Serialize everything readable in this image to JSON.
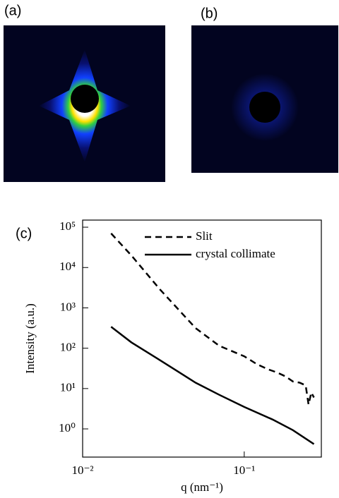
{
  "panels": {
    "a": "(a)",
    "b": "(b)"
  },
  "chart_data": {
    "type": "line",
    "panel_label": "(c)",
    "xlabel": "q (nm⁻¹)",
    "ylabel": "Intensity (a.u.)",
    "log_x": true,
    "log_y": true,
    "legend": "upper right",
    "xlim": [
      0.01,
      0.3
    ],
    "ylim": [
      0.2,
      150000
    ],
    "xticks": [
      {
        "value": 0.01,
        "label": "10⁻²"
      },
      {
        "value": 0.1,
        "label": "10⁻¹"
      }
    ],
    "yticks": [
      {
        "value": 1,
        "label": "10⁰"
      },
      {
        "value": 10,
        "label": "10¹"
      },
      {
        "value": 100,
        "label": "10²"
      },
      {
        "value": 1000,
        "label": "10³"
      },
      {
        "value": 10000,
        "label": "10⁴"
      },
      {
        "value": 100000,
        "label": "10⁵"
      }
    ],
    "series": [
      {
        "name": "Slit",
        "color": "#000000",
        "linestyle": "dashed",
        "x": [
          0.015,
          0.02,
          0.03,
          0.05,
          0.07,
          0.1,
          0.12,
          0.14,
          0.16,
          0.18,
          0.2,
          0.22,
          0.24,
          0.25,
          0.26,
          0.27
        ],
        "values": [
          70000,
          20000,
          2900,
          316,
          115,
          63,
          40,
          30,
          25,
          20,
          15,
          14,
          12,
          4,
          8,
          6
        ]
      },
      {
        "name": "crystal collimate",
        "color": "#000000",
        "linestyle": "solid",
        "x": [
          0.015,
          0.02,
          0.03,
          0.05,
          0.07,
          0.1,
          0.15,
          0.2,
          0.27
        ],
        "values": [
          340,
          140,
          51,
          14,
          7,
          3.5,
          1.7,
          0.93,
          0.42
        ]
      }
    ]
  }
}
